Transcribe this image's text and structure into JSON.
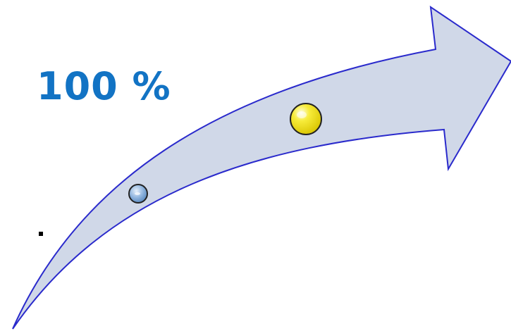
{
  "label": {
    "text": "100 %"
  },
  "colors": {
    "label": "#1273c4",
    "arrow_fill": "#d0d8e8",
    "arrow_stroke": "#2a2acc",
    "small_marker": "#7fa8d8",
    "large_marker": "#f2e21c",
    "marker_outline": "#222222"
  }
}
